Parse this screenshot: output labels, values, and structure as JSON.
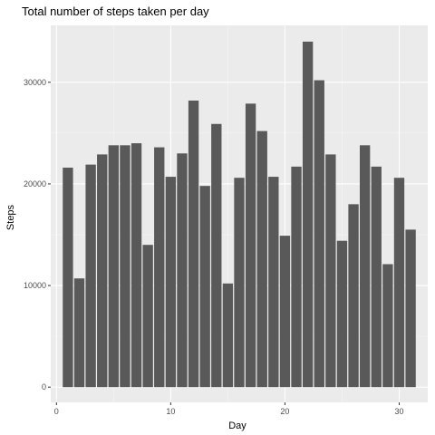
{
  "chart_data": {
    "type": "bar",
    "title": "Total number of steps taken per day",
    "xlabel": "Day",
    "ylabel": "Steps",
    "x": [
      1,
      2,
      3,
      4,
      5,
      6,
      7,
      8,
      9,
      10,
      11,
      12,
      13,
      14,
      15,
      16,
      17,
      18,
      19,
      20,
      21,
      22,
      23,
      24,
      25,
      26,
      27,
      28,
      29,
      30,
      31
    ],
    "values": [
      21600,
      10700,
      21900,
      22900,
      23800,
      23800,
      24000,
      14000,
      23600,
      20700,
      23000,
      28200,
      19800,
      25900,
      10200,
      20600,
      27900,
      25200,
      20700,
      14900,
      21700,
      34000,
      30200,
      22900,
      14400,
      18000,
      23800,
      21700,
      12100,
      20600,
      15500
    ],
    "xlim": [
      -0.5,
      32.5
    ],
    "ylim": [
      -1500,
      35600
    ],
    "x_ticks": [
      0,
      10,
      20,
      30
    ],
    "x_tick_labels": [
      "0",
      "10",
      "20",
      "30"
    ],
    "y_ticks": [
      0,
      10000,
      20000,
      30000
    ],
    "y_tick_labels": [
      "0",
      "10000",
      "20000",
      "30000"
    ],
    "grid": true,
    "colors": {
      "panel": "#ebebeb",
      "bar": "#595959",
      "grid_major": "#ffffff",
      "grid_minor": "#f5f5f5",
      "tick": "#333333"
    }
  }
}
